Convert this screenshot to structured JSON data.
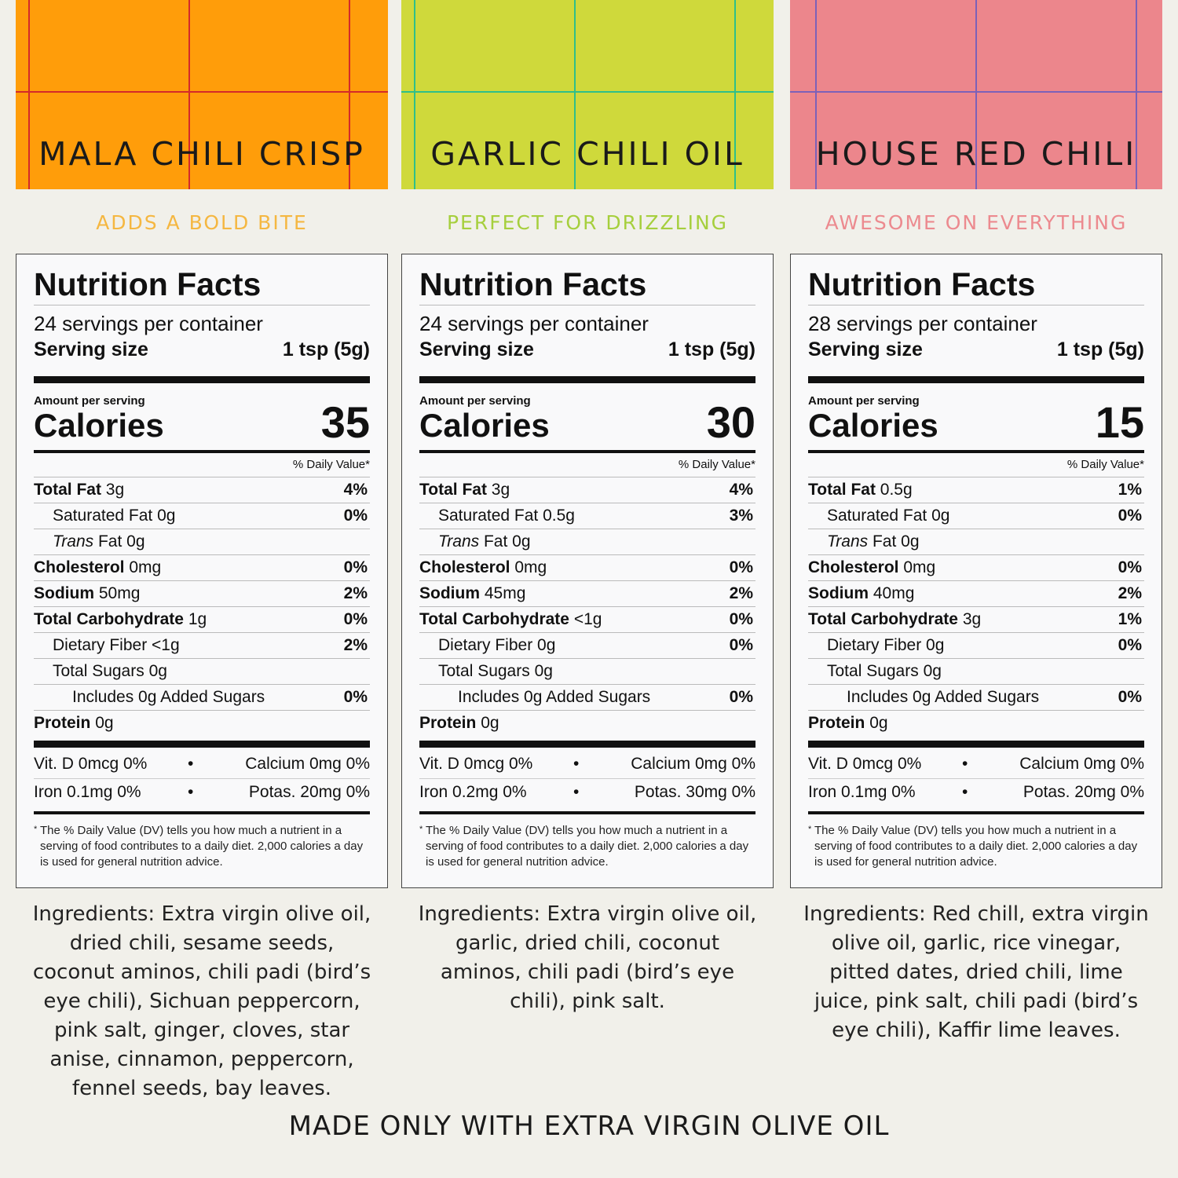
{
  "theme": {
    "banner_colors": [
      "#ff9d0a",
      "#cfd93b",
      "#ec868c"
    ],
    "grid_colors": [
      "#d42a2a",
      "#2fbf8a",
      "#7c61b8"
    ],
    "tagline_colors": [
      "#f5b741",
      "#a6cf3d",
      "#ec8a8f"
    ]
  },
  "products": [
    {
      "name": "MALA CHILI CRISP",
      "tagline": "ADDS A BOLD BITE",
      "label": {
        "title": "Nutrition Facts",
        "servings": "24 servings per container",
        "serving_size_label": "Serving size",
        "serving_size_value": "1 tsp (5g)",
        "amount_per_serving": "Amount per serving",
        "calories_label": "Calories",
        "calories_value": "35",
        "dv_header": "% Daily Value*",
        "rows": [
          {
            "name": "Total Fat",
            "amount": "3g",
            "pct": "4%"
          },
          {
            "name": "Saturated Fat",
            "amount": "0g",
            "pct": "0%"
          },
          {
            "name": "Trans",
            "amount": "Fat 0g",
            "pct": ""
          },
          {
            "name": "Cholesterol",
            "amount": "0mg",
            "pct": "0%"
          },
          {
            "name": "Sodium",
            "amount": "50mg",
            "pct": "2%"
          },
          {
            "name": "Total Carbohydrate",
            "amount": "1g",
            "pct": "0%"
          },
          {
            "name": "Dietary Fiber",
            "amount": "<1g",
            "pct": "2%"
          },
          {
            "name": "Total Sugars",
            "amount": "0g",
            "pct": ""
          },
          {
            "name": "Includes 0g Added Sugars",
            "amount": "",
            "pct": "0%"
          },
          {
            "name": "Protein",
            "amount": "0g",
            "pct": ""
          }
        ],
        "vitamins": [
          {
            "left": "Vit. D 0mcg 0%",
            "right": "Calcium 0mg 0%"
          },
          {
            "left": "Iron 0.1mg 0%",
            "right": "Potas. 20mg 0%"
          }
        ],
        "footnote": "The % Daily Value (DV) tells you how much a nutrient in a serving of food contributes to a daily diet. 2,000 calories a day is used for general nutrition advice."
      },
      "ingredients": "Ingredients: Extra virgin olive oil, dried chili, sesame seeds, coconut aminos, chili padi (bird’s eye chili), Sichuan peppercorn, pink salt, ginger, cloves, star anise, cinnamon, peppercorn, fennel seeds, bay leaves."
    },
    {
      "name": "GARLIC CHILI OIL",
      "tagline": "PERFECT FOR DRIZZLING",
      "label": {
        "title": "Nutrition Facts",
        "servings": "24 servings per container",
        "serving_size_label": "Serving size",
        "serving_size_value": "1 tsp (5g)",
        "amount_per_serving": "Amount per serving",
        "calories_label": "Calories",
        "calories_value": "30",
        "dv_header": "% Daily Value*",
        "rows": [
          {
            "name": "Total Fat",
            "amount": "3g",
            "pct": "4%"
          },
          {
            "name": "Saturated Fat",
            "amount": "0.5g",
            "pct": "3%"
          },
          {
            "name": "Trans",
            "amount": "Fat 0g",
            "pct": ""
          },
          {
            "name": "Cholesterol",
            "amount": "0mg",
            "pct": "0%"
          },
          {
            "name": "Sodium",
            "amount": "45mg",
            "pct": "2%"
          },
          {
            "name": "Total Carbohydrate",
            "amount": "<1g",
            "pct": "0%"
          },
          {
            "name": "Dietary Fiber",
            "amount": "0g",
            "pct": "0%"
          },
          {
            "name": "Total Sugars",
            "amount": "0g",
            "pct": ""
          },
          {
            "name": "Includes 0g Added Sugars",
            "amount": "",
            "pct": "0%"
          },
          {
            "name": "Protein",
            "amount": "0g",
            "pct": ""
          }
        ],
        "vitamins": [
          {
            "left": "Vit. D 0mcg 0%",
            "right": "Calcium 0mg 0%"
          },
          {
            "left": "Iron 0.2mg 0%",
            "right": "Potas. 30mg 0%"
          }
        ],
        "footnote": "The % Daily Value (DV) tells you how much a nutrient in a serving of food contributes to a daily diet. 2,000 calories a day is used for general nutrition advice."
      },
      "ingredients": "Ingredients: Extra virgin olive oil, garlic, dried chili, coconut aminos, chili padi (bird’s eye chili), pink salt."
    },
    {
      "name": "HOUSE RED CHILI",
      "tagline": "AWESOME ON EVERYTHING",
      "label": {
        "title": "Nutrition Facts",
        "servings": "28 servings per container",
        "serving_size_label": "Serving size",
        "serving_size_value": "1 tsp (5g)",
        "amount_per_serving": "Amount per serving",
        "calories_label": "Calories",
        "calories_value": "15",
        "dv_header": "% Daily Value*",
        "rows": [
          {
            "name": "Total Fat",
            "amount": "0.5g",
            "pct": "1%"
          },
          {
            "name": "Saturated Fat",
            "amount": "0g",
            "pct": "0%"
          },
          {
            "name": "Trans",
            "amount": "Fat 0g",
            "pct": ""
          },
          {
            "name": "Cholesterol",
            "amount": "0mg",
            "pct": "0%"
          },
          {
            "name": "Sodium",
            "amount": "40mg",
            "pct": "2%"
          },
          {
            "name": "Total Carbohydrate",
            "amount": "3g",
            "pct": "1%"
          },
          {
            "name": "Dietary Fiber",
            "amount": "0g",
            "pct": "0%"
          },
          {
            "name": "Total Sugars",
            "amount": "0g",
            "pct": ""
          },
          {
            "name": "Includes 0g Added Sugars",
            "amount": "",
            "pct": "0%"
          },
          {
            "name": "Protein",
            "amount": "0g",
            "pct": ""
          }
        ],
        "vitamins": [
          {
            "left": "Vit. D 0mcg 0%",
            "right": "Calcium 0mg 0%"
          },
          {
            "left": "Iron 0.1mg 0%",
            "right": "Potas. 20mg 0%"
          }
        ],
        "footnote": "The % Daily Value (DV) tells you how much a nutrient in a serving of food contributes to a daily diet. 2,000 calories a day is used for general nutrition advice."
      },
      "ingredients": "Ingredients: Red chill, extra virgin olive oil, garlic, rice vinegar, pitted dates, dried chili, lime juice, pink salt, chili padi (bird’s eye chili), Kaffir lime leaves."
    }
  ],
  "footer_text": "MADE ONLY WITH EXTRA VIRGIN OLIVE OIL"
}
